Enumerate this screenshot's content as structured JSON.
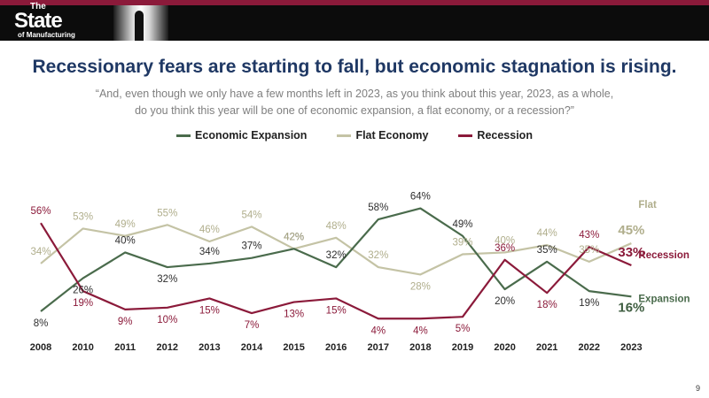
{
  "header": {
    "logo_line1": "The",
    "logo_line2": "State",
    "logo_line3": "of Manufacturing"
  },
  "title": "Recessionary fears are starting to fall, but economic stagnation is rising.",
  "question_line1": "“And, even though we only have a few months left in 2023, as you think about this year, 2023, as a whole,",
  "question_line2": "do you think this year will be one of economic expansion, a flat economy, or a recession?”",
  "page_number": "9",
  "chart_data": {
    "type": "line",
    "categories": [
      "2008",
      "2010",
      "2011",
      "2012",
      "2013",
      "2014",
      "2015",
      "2016",
      "2017",
      "2018",
      "2019",
      "2020",
      "2021",
      "2022",
      "2023"
    ],
    "ylim": [
      0,
      70
    ],
    "grid": false,
    "legend_position": "top",
    "series": [
      {
        "name": "Economic Expansion",
        "end_label": "Expansion",
        "color": "#4a6b4c",
        "values": [
          8,
          26,
          40,
          32,
          34,
          37,
          42,
          32,
          58,
          64,
          49,
          20,
          35,
          19,
          16
        ],
        "labels": [
          "8%",
          "26%",
          "40%",
          "32%",
          "34%",
          "37%",
          "42%",
          "32%",
          "58%",
          "64%",
          "49%",
          "20%",
          "35%",
          "19%",
          "16%"
        ]
      },
      {
        "name": "Flat Economy",
        "end_label": "Flat",
        "color": "#c4c3a5",
        "values": [
          34,
          53,
          49,
          55,
          46,
          54,
          42,
          48,
          32,
          28,
          39,
          40,
          44,
          35,
          45
        ],
        "labels": [
          "34%",
          "53%",
          "49%",
          "55%",
          "46%",
          "54%",
          "42%",
          "48%",
          "32%",
          "28%",
          "39%",
          "40%",
          "44%",
          "35%",
          "45%"
        ]
      },
      {
        "name": "Recession",
        "end_label": "Recession",
        "color": "#8b1a3a",
        "values": [
          56,
          19,
          9,
          10,
          15,
          7,
          13,
          15,
          4,
          4,
          5,
          36,
          18,
          43,
          33
        ],
        "labels": [
          "56%",
          "19%",
          "9%",
          "10%",
          "15%",
          "7%",
          "13%",
          "15%",
          "4%",
          "4%",
          "5%",
          "36%",
          "18%",
          "43%",
          "33%"
        ]
      }
    ]
  }
}
